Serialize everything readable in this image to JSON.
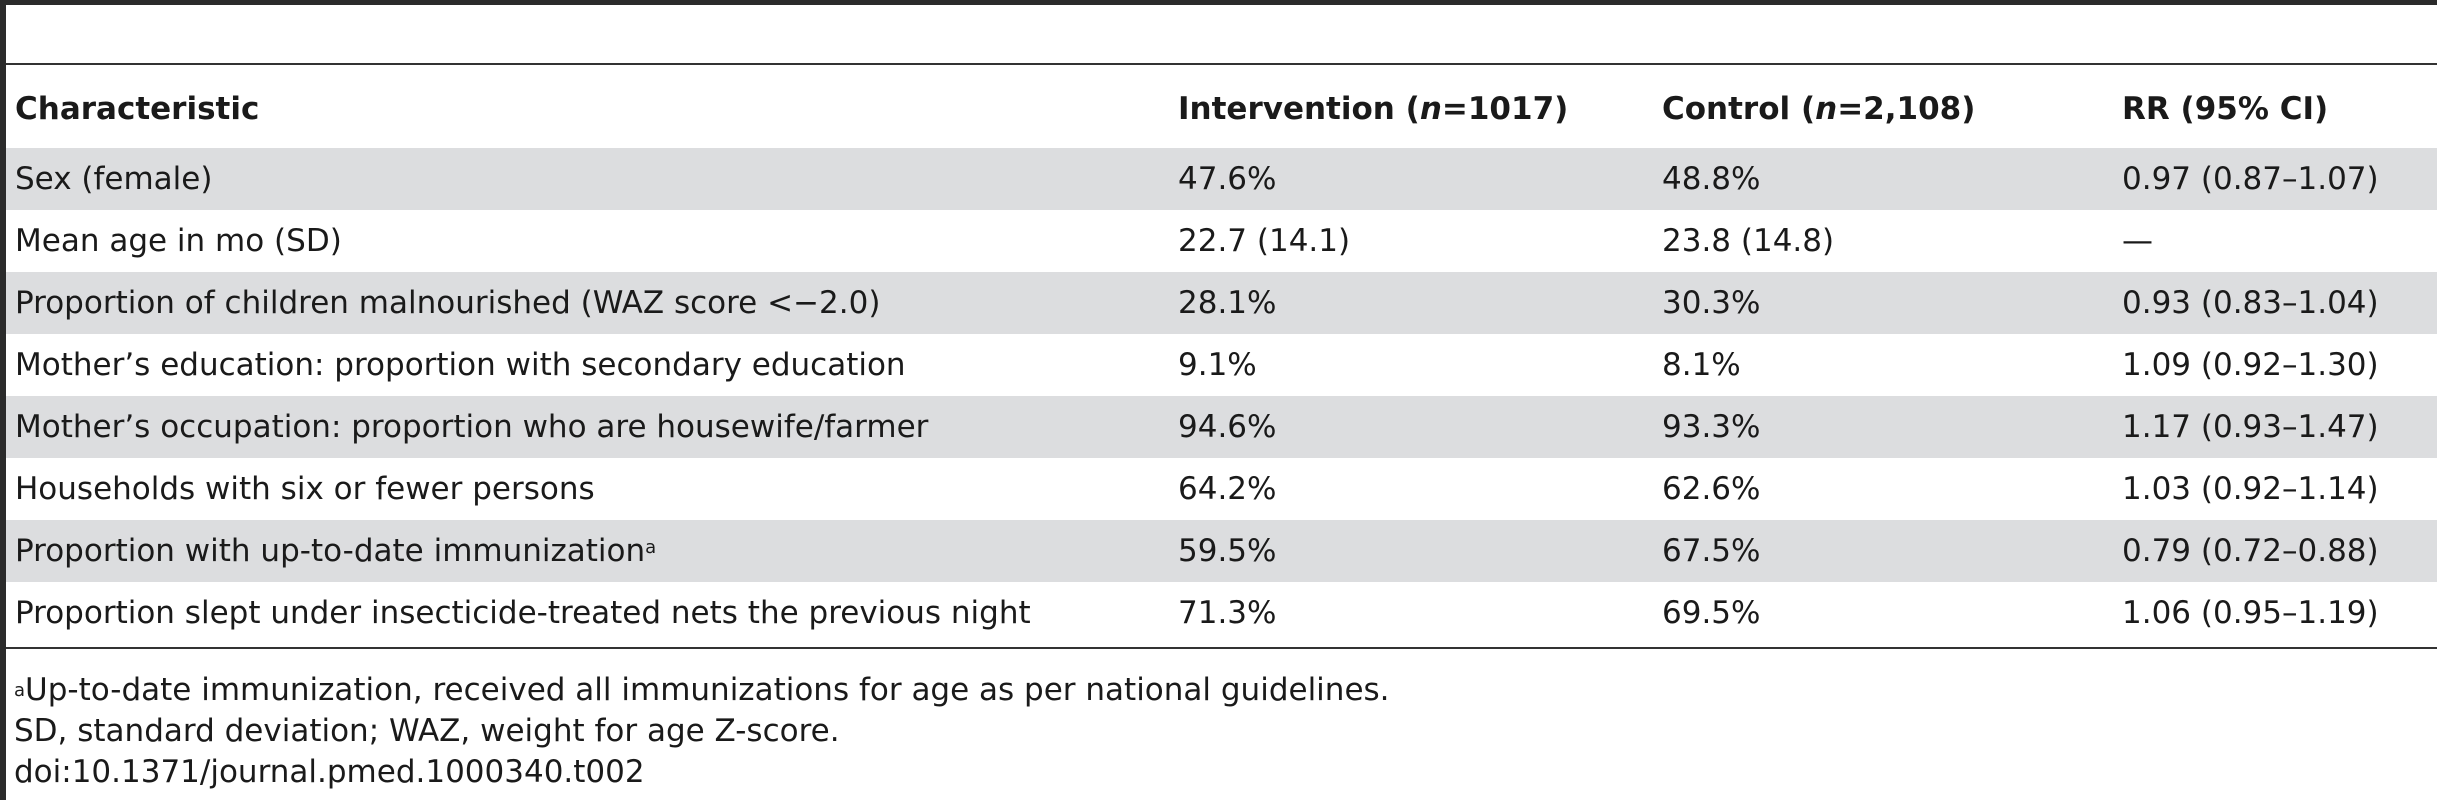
{
  "table": {
    "headers": {
      "characteristic": "Characteristic",
      "intervention_prefix": "Intervention (",
      "intervention_n_sym": "n",
      "intervention_suffix": "=1017)",
      "control_prefix": "Control (",
      "control_n_sym": "n",
      "control_suffix": "=2,108)",
      "rr": "RR (95% CI)"
    },
    "rows": [
      {
        "characteristic": "Sex (female)",
        "intervention": "47.6%",
        "control": "48.8%",
        "rr": "0.97 (0.87–1.07)",
        "sup": ""
      },
      {
        "characteristic": "Mean age in mo (SD)",
        "intervention": "22.7 (14.1)",
        "control": "23.8 (14.8)",
        "rr": "—",
        "sup": ""
      },
      {
        "characteristic": "Proportion of children malnourished (WAZ score <−2.0)",
        "intervention": "28.1%",
        "control": "30.3%",
        "rr": "0.93 (0.83–1.04)",
        "sup": ""
      },
      {
        "characteristic": "Mother’s education: proportion with secondary education",
        "intervention": "9.1%",
        "control": "8.1%",
        "rr": "1.09 (0.92–1.30)",
        "sup": ""
      },
      {
        "characteristic": "Mother’s occupation: proportion who are housewife/farmer",
        "intervention": "94.6%",
        "control": "93.3%",
        "rr": "1.17 (0.93–1.47)",
        "sup": ""
      },
      {
        "characteristic": "Households with six or fewer persons",
        "intervention": "64.2%",
        "control": "62.6%",
        "rr": "1.03 (0.92–1.14)",
        "sup": ""
      },
      {
        "characteristic": "Proportion with up-to-date immunization",
        "intervention": "59.5%",
        "control": "67.5%",
        "rr": "0.79 (0.72–0.88)",
        "sup": "a"
      },
      {
        "characteristic": "Proportion slept under insecticide-treated nets the previous night",
        "intervention": "71.3%",
        "control": "69.5%",
        "rr": "1.06 (0.95–1.19)",
        "sup": ""
      }
    ]
  },
  "footnotes": {
    "note_a_marker": "a",
    "note_a_text": "Up-to-date immunization, received all immunizations for age as per national guidelines.",
    "abbreviations": "SD, standard deviation; WAZ, weight for age Z-score.",
    "doi": "doi:10.1371/journal.pmed.1000340.t002"
  },
  "colors": {
    "row_shade": "#dcdddf",
    "rule": "#333333"
  }
}
